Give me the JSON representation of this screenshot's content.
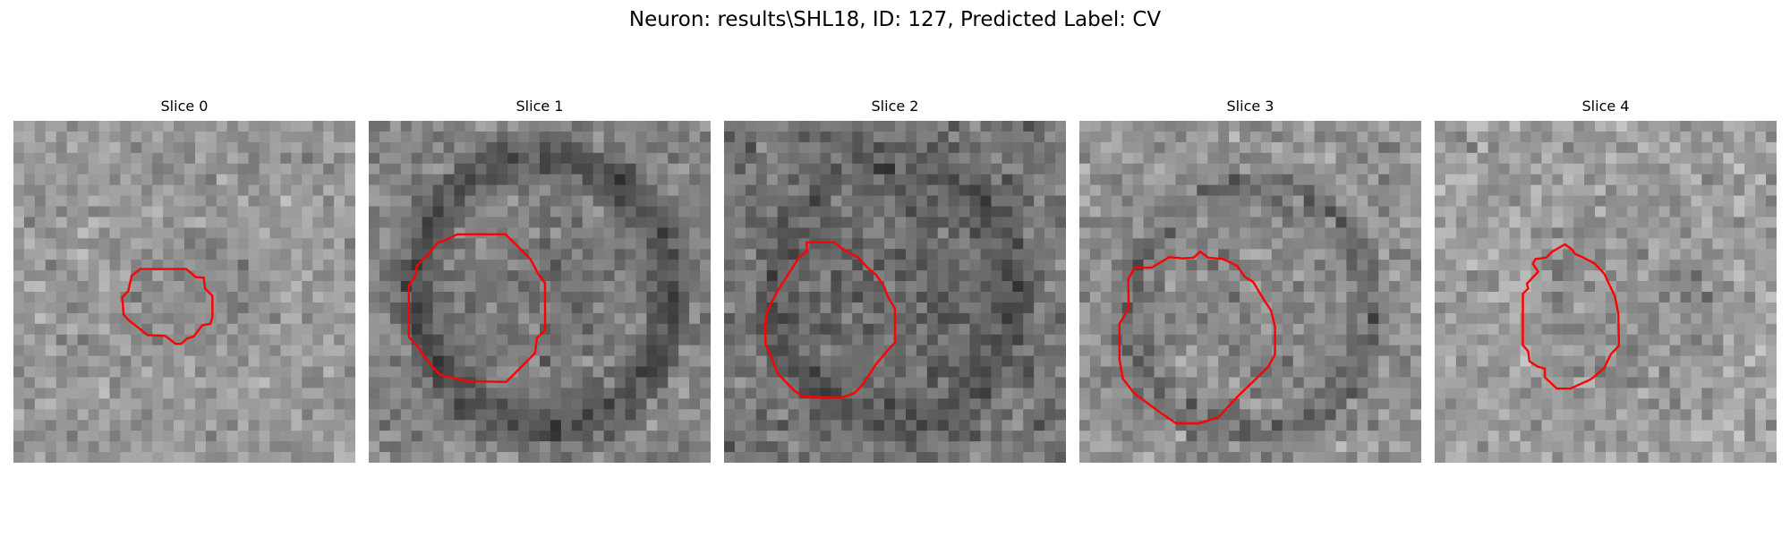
{
  "figure": {
    "title": "Neuron: results\\SHL18, ID: 127, Predicted Label: CV"
  },
  "outline_color": "#ff0000",
  "panels": [
    {
      "title": "Slice 0",
      "seed": 11,
      "bias": 0.6,
      "spread": 0.16,
      "ring": 0.06,
      "ellipse": [
        0.55,
        0.52,
        0.19,
        0.15
      ]
    },
    {
      "title": "Slice 1",
      "seed": 23,
      "bias": 0.52,
      "spread": 0.17,
      "ring": 0.22,
      "ellipse": [
        0.51,
        0.5,
        0.36,
        0.38
      ]
    },
    {
      "title": "Slice 2",
      "seed": 37,
      "bias": 0.46,
      "spread": 0.19,
      "ring": 0.12,
      "ellipse": [
        0.5,
        0.5,
        0.34,
        0.37
      ]
    },
    {
      "title": "Slice 3",
      "seed": 41,
      "bias": 0.58,
      "spread": 0.19,
      "ring": 0.16,
      "ellipse": [
        0.5,
        0.55,
        0.34,
        0.35
      ]
    },
    {
      "title": "Slice 4",
      "seed": 53,
      "bias": 0.62,
      "spread": 0.18,
      "ring": 0.05,
      "ellipse": [
        0.59,
        0.52,
        0.23,
        0.28
      ]
    }
  ]
}
